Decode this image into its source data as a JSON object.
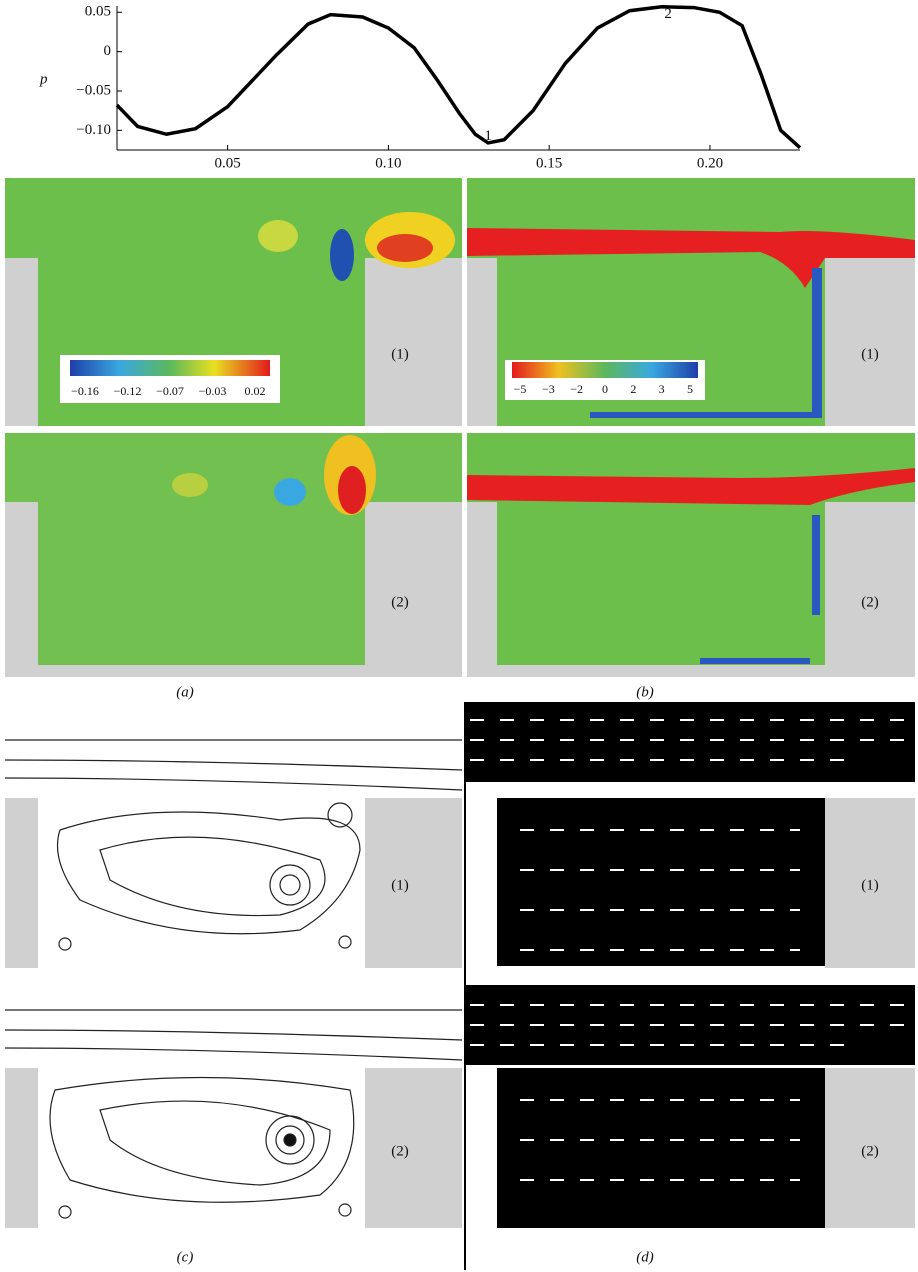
{
  "chart_data": {
    "type": "line",
    "y_label": "p",
    "x": [
      0.0156,
      0.022,
      0.031,
      0.04,
      0.05,
      0.065,
      0.075,
      0.082,
      0.092,
      0.1,
      0.108,
      0.115,
      0.122,
      0.127,
      0.131,
      0.136,
      0.145,
      0.155,
      0.165,
      0.175,
      0.185,
      0.195,
      0.203,
      0.21,
      0.216,
      0.222,
      0.228
    ],
    "series": [
      {
        "color": "#000000",
        "values": [
          -0.068,
          -0.095,
          -0.105,
          -0.098,
          -0.07,
          -0.005,
          0.035,
          0.047,
          0.044,
          0.03,
          0.005,
          -0.035,
          -0.078,
          -0.105,
          -0.116,
          -0.112,
          -0.075,
          -0.015,
          0.03,
          0.052,
          0.057,
          0.056,
          0.05,
          0.033,
          -0.03,
          -0.1,
          -0.122
        ]
      }
    ],
    "annotations": [
      {
        "text": "1",
        "x": 0.131,
        "y": -0.108
      },
      {
        "text": "2",
        "x": 0.187,
        "y": 0.047
      }
    ],
    "xlim": [
      0.0156,
      0.228
    ],
    "ylim": [
      -0.125,
      0.058
    ],
    "xticks": [
      0.05,
      {
        "value": 0.1,
        "label": "0.10"
      },
      0.15,
      {
        "value": 0.2,
        "label": "0.20"
      }
    ],
    "yticks": [
      0.05,
      0,
      {
        "value": -0.05,
        "label": "−0.05"
      },
      {
        "value": -0.1,
        "label": "−0.10"
      }
    ]
  },
  "figure": {
    "panel_labels": [
      "(a)",
      "(b)",
      "(c)",
      "(d)"
    ],
    "state_labels": [
      "(1)",
      "(2)"
    ],
    "colorbar_a": [
      "−0.16",
      "−0.12",
      "−0.07",
      "−0.03",
      "0.02"
    ],
    "colorbar_b": [
      "−5",
      "−3",
      "−2",
      "0",
      "2",
      "3",
      "5"
    ]
  }
}
